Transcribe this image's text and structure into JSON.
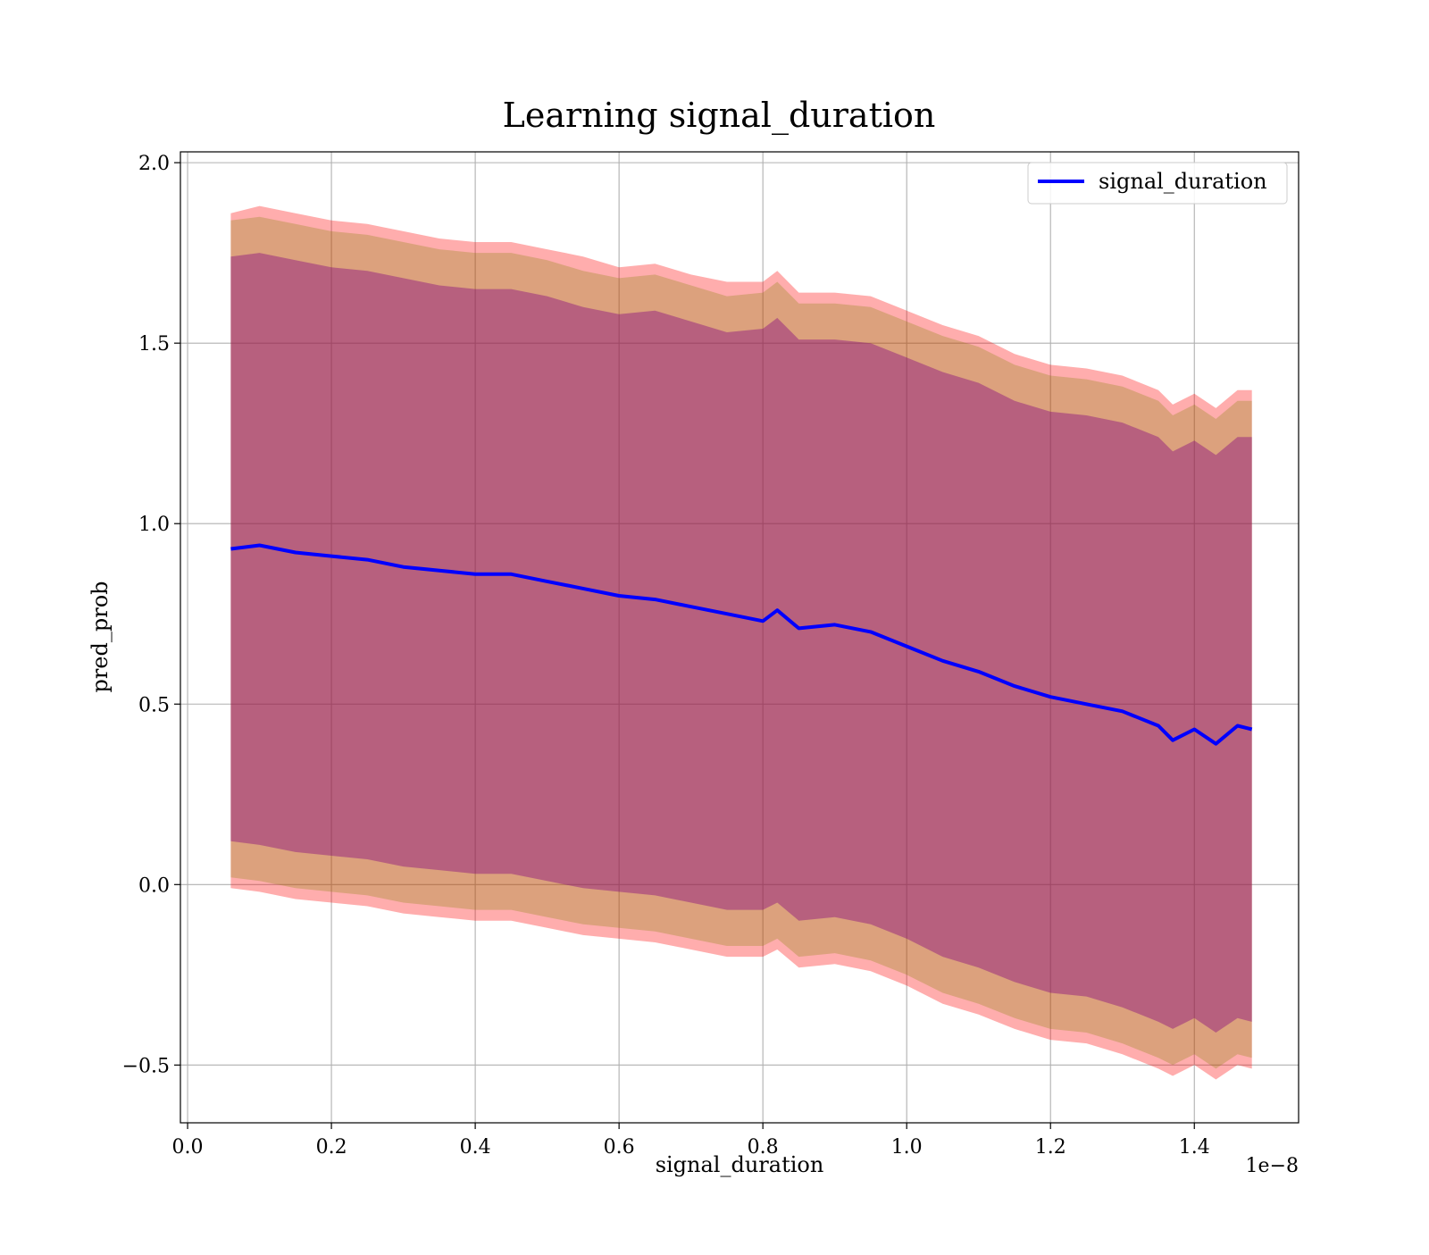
{
  "chart_data": {
    "type": "line",
    "title": "Learning signal_duration",
    "xlabel": "signal_duration",
    "ylabel": "pred_prob",
    "x_offset_label": "1e−8",
    "xlim": [
      -0.01,
      1.545
    ],
    "ylim": [
      -0.66,
      2.03
    ],
    "x_ticks": [
      0.0,
      0.2,
      0.4,
      0.6,
      0.8,
      1.0,
      1.2,
      1.4
    ],
    "x_tick_labels": [
      "0.0",
      "0.2",
      "0.4",
      "0.6",
      "0.8",
      "1.0",
      "1.2",
      "1.4"
    ],
    "y_ticks": [
      -0.5,
      0.0,
      0.5,
      1.0,
      1.5,
      2.0
    ],
    "y_tick_labels": [
      "−0.5",
      "0.0",
      "0.5",
      "1.0",
      "1.5",
      "2.0"
    ],
    "grid": true,
    "legend_position": "top-right",
    "series": [
      {
        "name": "signal_duration",
        "color": "#0000ff",
        "x": [
          0.06,
          0.1,
          0.15,
          0.2,
          0.25,
          0.3,
          0.35,
          0.4,
          0.45,
          0.5,
          0.55,
          0.6,
          0.65,
          0.7,
          0.75,
          0.8,
          0.82,
          0.85,
          0.9,
          0.95,
          1.0,
          1.05,
          1.1,
          1.15,
          1.2,
          1.25,
          1.3,
          1.35,
          1.37,
          1.4,
          1.43,
          1.46,
          1.48
        ],
        "y": [
          0.93,
          0.94,
          0.92,
          0.91,
          0.9,
          0.88,
          0.87,
          0.86,
          0.86,
          0.84,
          0.82,
          0.8,
          0.79,
          0.77,
          0.75,
          0.73,
          0.76,
          0.71,
          0.72,
          0.7,
          0.66,
          0.62,
          0.59,
          0.55,
          0.52,
          0.5,
          0.48,
          0.44,
          0.4,
          0.43,
          0.39,
          0.44,
          0.43
        ]
      }
    ],
    "bands": [
      {
        "color": "#ff0000",
        "opacity": 0.32,
        "x": [
          0.06,
          0.1,
          0.15,
          0.2,
          0.25,
          0.3,
          0.35,
          0.4,
          0.45,
          0.5,
          0.55,
          0.6,
          0.65,
          0.7,
          0.75,
          0.8,
          0.82,
          0.85,
          0.9,
          0.95,
          1.0,
          1.05,
          1.1,
          1.15,
          1.2,
          1.25,
          1.3,
          1.35,
          1.37,
          1.4,
          1.43,
          1.46,
          1.48
        ],
        "upper": [
          1.86,
          1.88,
          1.86,
          1.84,
          1.83,
          1.81,
          1.79,
          1.78,
          1.78,
          1.76,
          1.74,
          1.71,
          1.72,
          1.69,
          1.67,
          1.67,
          1.7,
          1.64,
          1.64,
          1.63,
          1.59,
          1.55,
          1.52,
          1.47,
          1.44,
          1.43,
          1.41,
          1.37,
          1.33,
          1.36,
          1.32,
          1.37,
          1.37
        ],
        "lower": [
          -0.01,
          -0.02,
          -0.04,
          -0.05,
          -0.06,
          -0.08,
          -0.09,
          -0.1,
          -0.1,
          -0.12,
          -0.14,
          -0.15,
          -0.16,
          -0.18,
          -0.2,
          -0.2,
          -0.18,
          -0.23,
          -0.22,
          -0.24,
          -0.28,
          -0.33,
          -0.36,
          -0.4,
          -0.43,
          -0.44,
          -0.47,
          -0.51,
          -0.53,
          -0.5,
          -0.54,
          -0.5,
          -0.51
        ]
      },
      {
        "color": "#808000",
        "opacity": 0.28,
        "x": [
          0.06,
          0.1,
          0.15,
          0.2,
          0.25,
          0.3,
          0.35,
          0.4,
          0.45,
          0.5,
          0.55,
          0.6,
          0.65,
          0.7,
          0.75,
          0.8,
          0.82,
          0.85,
          0.9,
          0.95,
          1.0,
          1.05,
          1.1,
          1.15,
          1.2,
          1.25,
          1.3,
          1.35,
          1.37,
          1.4,
          1.43,
          1.46,
          1.48
        ],
        "upper": [
          1.84,
          1.85,
          1.83,
          1.81,
          1.8,
          1.78,
          1.76,
          1.75,
          1.75,
          1.73,
          1.7,
          1.68,
          1.69,
          1.66,
          1.63,
          1.64,
          1.67,
          1.61,
          1.61,
          1.6,
          1.56,
          1.52,
          1.49,
          1.44,
          1.41,
          1.4,
          1.38,
          1.34,
          1.3,
          1.33,
          1.29,
          1.34,
          1.34
        ],
        "lower": [
          0.02,
          0.01,
          -0.01,
          -0.02,
          -0.03,
          -0.05,
          -0.06,
          -0.07,
          -0.07,
          -0.09,
          -0.11,
          -0.12,
          -0.13,
          -0.15,
          -0.17,
          -0.17,
          -0.15,
          -0.2,
          -0.19,
          -0.21,
          -0.25,
          -0.3,
          -0.33,
          -0.37,
          -0.4,
          -0.41,
          -0.44,
          -0.48,
          -0.5,
          -0.47,
          -0.51,
          -0.47,
          -0.48
        ]
      },
      {
        "color": "#800080",
        "opacity": 0.4,
        "x": [
          0.06,
          0.1,
          0.15,
          0.2,
          0.25,
          0.3,
          0.35,
          0.4,
          0.45,
          0.5,
          0.55,
          0.6,
          0.65,
          0.7,
          0.75,
          0.8,
          0.82,
          0.85,
          0.9,
          0.95,
          1.0,
          1.05,
          1.1,
          1.15,
          1.2,
          1.25,
          1.3,
          1.35,
          1.37,
          1.4,
          1.43,
          1.46,
          1.48
        ],
        "upper": [
          1.74,
          1.75,
          1.73,
          1.71,
          1.7,
          1.68,
          1.66,
          1.65,
          1.65,
          1.63,
          1.6,
          1.58,
          1.59,
          1.56,
          1.53,
          1.54,
          1.57,
          1.51,
          1.51,
          1.5,
          1.46,
          1.42,
          1.39,
          1.34,
          1.31,
          1.3,
          1.28,
          1.24,
          1.2,
          1.23,
          1.19,
          1.24,
          1.24
        ],
        "lower": [
          0.12,
          0.11,
          0.09,
          0.08,
          0.07,
          0.05,
          0.04,
          0.03,
          0.03,
          0.01,
          -0.01,
          -0.02,
          -0.03,
          -0.05,
          -0.07,
          -0.07,
          -0.05,
          -0.1,
          -0.09,
          -0.11,
          -0.15,
          -0.2,
          -0.23,
          -0.27,
          -0.3,
          -0.31,
          -0.34,
          -0.38,
          -0.4,
          -0.37,
          -0.41,
          -0.37,
          -0.38
        ]
      }
    ]
  }
}
